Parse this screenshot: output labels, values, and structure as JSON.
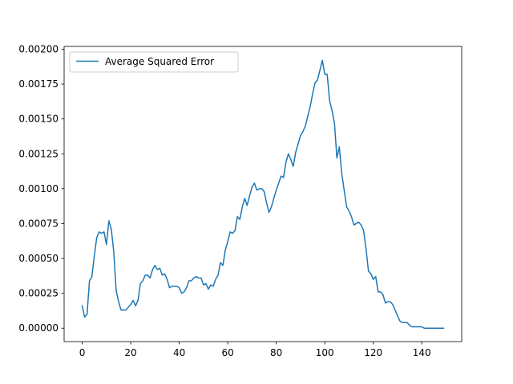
{
  "chart_data": {
    "type": "line",
    "title": "",
    "xlabel": "",
    "ylabel": "",
    "xlim": [
      -7.45,
      156.45
    ],
    "ylim": [
      -9.62e-05,
      0.00202
    ],
    "x_ticks": [
      0,
      20,
      40,
      60,
      80,
      100,
      120,
      140
    ],
    "x_tick_labels": [
      "0",
      "20",
      "40",
      "60",
      "80",
      "100",
      "120",
      "140"
    ],
    "y_ticks": [
      0,
      0.00025,
      0.0005,
      0.00075,
      0.001,
      0.00125,
      0.0015,
      0.00175,
      0.002
    ],
    "y_tick_labels": [
      "0.00000",
      "0.00025",
      "0.00050",
      "0.00075",
      "0.00100",
      "0.00125",
      "0.00150",
      "0.00175",
      "0.00200"
    ],
    "grid": false,
    "legend_position": "upper left",
    "series": [
      {
        "name": "Average Squared Error",
        "color": "#1f77b4",
        "x": [
          0,
          1,
          2,
          3,
          4,
          5,
          6,
          7,
          8,
          9,
          10,
          11,
          12,
          13,
          14,
          15,
          16,
          17,
          18,
          19,
          20,
          21,
          22,
          23,
          24,
          25,
          26,
          27,
          28,
          29,
          30,
          31,
          32,
          33,
          34,
          35,
          36,
          37,
          38,
          39,
          40,
          41,
          42,
          43,
          44,
          45,
          46,
          47,
          48,
          49,
          50,
          51,
          52,
          53,
          54,
          55,
          56,
          57,
          58,
          59,
          60,
          61,
          62,
          63,
          64,
          65,
          66,
          67,
          68,
          69,
          70,
          71,
          72,
          73,
          74,
          75,
          76,
          77,
          78,
          79,
          80,
          81,
          82,
          83,
          84,
          85,
          86,
          87,
          88,
          89,
          90,
          91,
          92,
          93,
          94,
          95,
          96,
          97,
          98,
          99,
          100,
          101,
          102,
          103,
          104,
          105,
          106,
          107,
          108,
          109,
          110,
          111,
          112,
          113,
          114,
          115,
          116,
          117,
          118,
          119,
          120,
          121,
          122,
          123,
          124,
          125,
          126,
          127,
          128,
          129,
          130,
          131,
          132,
          133,
          134,
          135,
          136,
          137,
          138,
          139,
          140,
          141,
          142,
          143,
          144,
          145,
          146,
          147,
          148,
          149
        ],
        "y": [
          0.00016,
          8e-05,
          0.0001,
          0.00034,
          0.00037,
          0.00052,
          0.00065,
          0.00069,
          0.00068,
          0.00069,
          0.0006,
          0.00077,
          0.00071,
          0.00055,
          0.00027,
          0.00019,
          0.00013,
          0.00013,
          0.00013,
          0.00015,
          0.00017,
          0.0002,
          0.00016,
          0.0002,
          0.00032,
          0.00034,
          0.00038,
          0.00038,
          0.00036,
          0.00042,
          0.00045,
          0.00042,
          0.00043,
          0.00038,
          0.00039,
          0.00035,
          0.00029,
          0.0003,
          0.0003,
          0.0003,
          0.00029,
          0.00025,
          0.00026,
          0.00029,
          0.00034,
          0.00034,
          0.00036,
          0.00037,
          0.00036,
          0.00036,
          0.00031,
          0.00032,
          0.00028,
          0.00031,
          0.0003,
          0.00035,
          0.00038,
          0.00047,
          0.00045,
          0.00056,
          0.00062,
          0.00069,
          0.00068,
          0.0007,
          0.0008,
          0.00078,
          0.00087,
          0.00093,
          0.00088,
          0.00095,
          0.00101,
          0.00104,
          0.00099,
          0.001,
          0.001,
          0.00098,
          0.0009,
          0.00083,
          0.00087,
          0.00093,
          0.00099,
          0.00104,
          0.00109,
          0.00108,
          0.00119,
          0.00125,
          0.00121,
          0.00116,
          0.00126,
          0.00132,
          0.00138,
          0.00141,
          0.00145,
          0.00152,
          0.00159,
          0.00168,
          0.00176,
          0.00178,
          0.00185,
          0.00192,
          0.00182,
          0.00182,
          0.00163,
          0.00156,
          0.00147,
          0.00122,
          0.0013,
          0.00111,
          0.00099,
          0.00087,
          0.00084,
          0.0008,
          0.00074,
          0.00075,
          0.00076,
          0.00074,
          0.0007,
          0.00057,
          0.00041,
          0.00039,
          0.00035,
          0.00037,
          0.00026,
          0.00026,
          0.00024,
          0.00018,
          0.00019,
          0.00019,
          0.00017,
          0.00013,
          9e-05,
          5e-05,
          4e-05,
          4e-05,
          4e-05,
          2e-05,
          1e-05,
          1e-05,
          1e-05,
          1e-05,
          1e-05,
          0.0,
          0.0,
          0.0,
          0.0,
          0.0,
          0.0,
          0.0,
          0.0,
          0.0
        ]
      }
    ]
  }
}
